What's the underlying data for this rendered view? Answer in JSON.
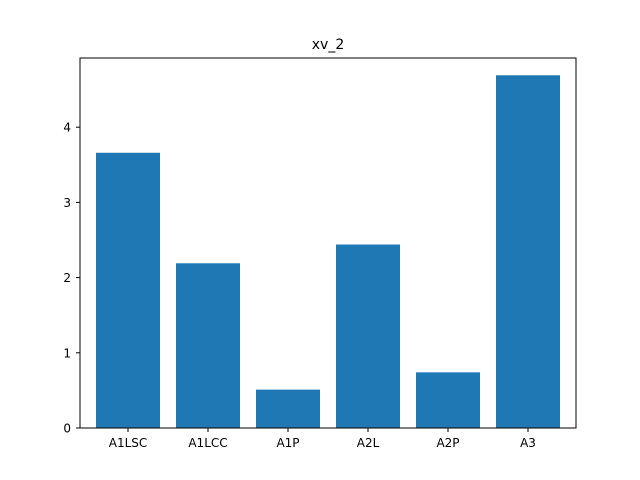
{
  "chart_data": {
    "type": "bar",
    "title": "xv_2",
    "xlabel": "",
    "ylabel": "",
    "categories": [
      "A1LSC",
      "A1LCC",
      "A1P",
      "A2L",
      "A2P",
      "A3"
    ],
    "values": [
      3.66,
      2.19,
      0.51,
      2.44,
      0.74,
      4.69
    ],
    "ylim": [
      0,
      4.92
    ],
    "yticks": [
      0,
      1,
      2,
      3,
      4
    ],
    "bar_color": "#1f77b4",
    "grid": false,
    "legend": false
  }
}
